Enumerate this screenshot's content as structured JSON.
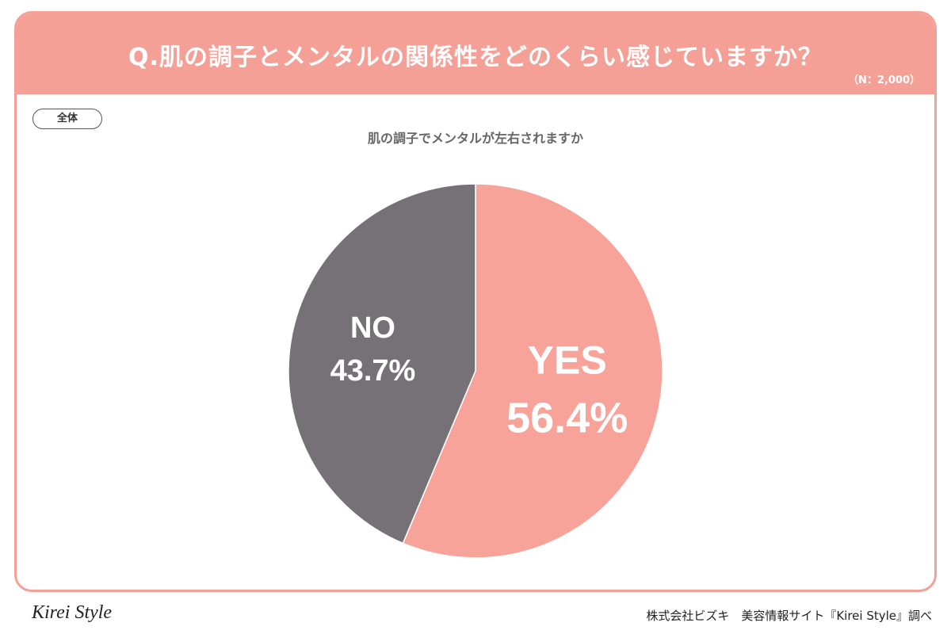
{
  "header": {
    "title": "Q.肌の調子とメンタルの関係性をどのくらい感じていますか？",
    "n_label": "（N：2,000）"
  },
  "segment_label": "全体",
  "colors": {
    "accent": "#f4a097",
    "yes": "#f8a39a",
    "no": "#767176"
  },
  "chart_data": {
    "type": "pie",
    "title": "肌の調子でメンタルが左右されますか",
    "slices": [
      {
        "label": "YES",
        "value": 56.4,
        "value_label": "56.4%",
        "color": "#f8a39a"
      },
      {
        "label": "NO",
        "value": 43.7,
        "value_label": "43.7%",
        "color": "#767176"
      }
    ],
    "start": "12 o'clock",
    "direction": "clockwise"
  },
  "footer": {
    "logo_text": "Kirei Style",
    "credit": "株式会社ビズキ　美容情報サイト『Kirei Style』調べ"
  }
}
